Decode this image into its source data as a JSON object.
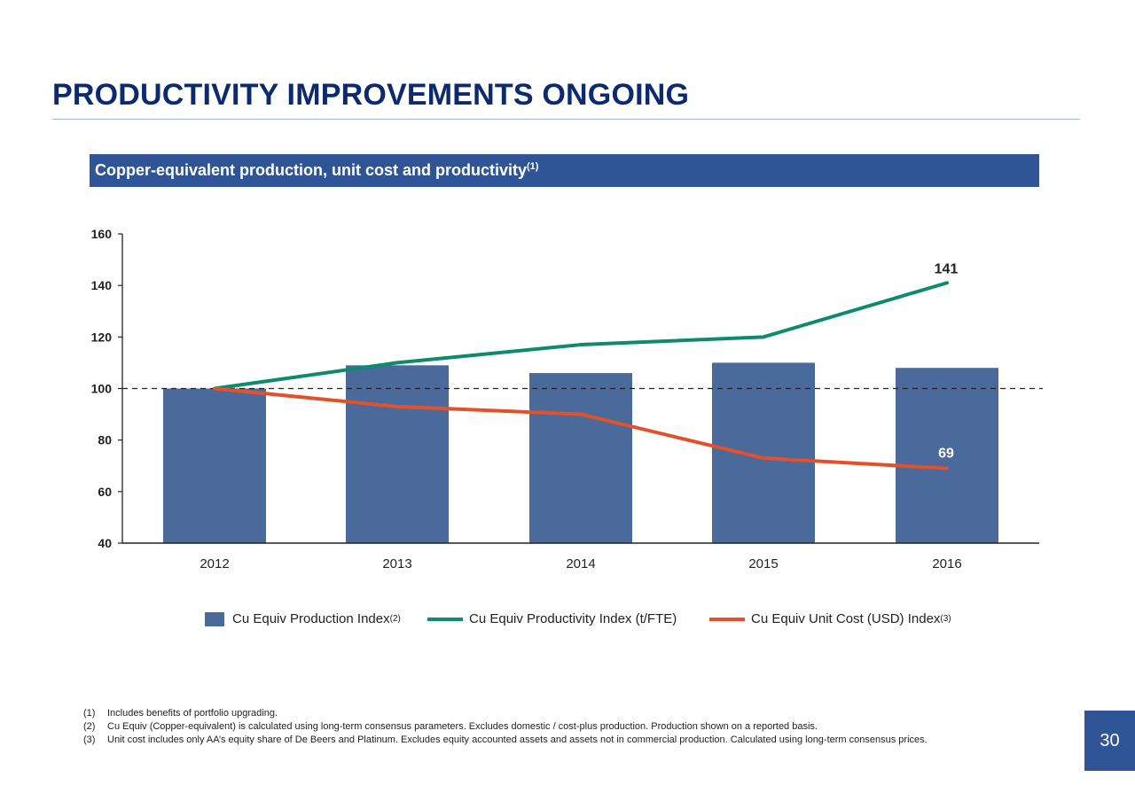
{
  "page": {
    "title": "PRODUCTIVITY IMPROVEMENTS ONGOING",
    "banner_text": "Copper-equivalent production, unit cost and productivity",
    "banner_sup": "(1)",
    "page_number": "30"
  },
  "legend": {
    "production_label": "Cu Equiv Production Index",
    "production_sup": "(2)",
    "productivity_label": "Cu Equiv Productivity Index (t/FTE)",
    "cost_label": "Cu Equiv Unit Cost (USD) Index",
    "cost_sup": "(3)"
  },
  "footnotes": [
    {
      "num": "(1)",
      "text": "Includes benefits of portfolio upgrading."
    },
    {
      "num": "(2)",
      "text": "Cu Equiv (Copper-equivalent) is calculated using long-term consensus parameters. Excludes domestic / cost-plus production. Production shown on a reported basis."
    },
    {
      "num": "(3)",
      "text": "Unit cost includes only AA’s equity share of De Beers and Platinum. Excludes equity accounted assets and assets not in commercial production. Calculated using long-term consensus prices."
    }
  ],
  "colors": {
    "title": "#0b2a6f",
    "banner": "#2f5597",
    "bars": "#4a6a9c",
    "productivity_line": "#0e8a6e",
    "cost_line": "#e2502c"
  },
  "chart_data": {
    "type": "bar",
    "title": "Copper-equivalent production, unit cost and productivity",
    "categories": [
      "2012",
      "2013",
      "2014",
      "2015",
      "2016"
    ],
    "ylim": [
      40,
      160
    ],
    "yticks": [
      40,
      60,
      80,
      100,
      120,
      140,
      160
    ],
    "reference_line": 100,
    "series": [
      {
        "name": "Cu Equiv Production Index",
        "kind": "bar",
        "values": [
          100,
          109,
          106,
          110,
          108
        ]
      },
      {
        "name": "Cu Equiv Productivity Index (t/FTE)",
        "kind": "line",
        "values": [
          100,
          110,
          117,
          120,
          141
        ]
      },
      {
        "name": "Cu Equiv Unit Cost (USD) Index",
        "kind": "line",
        "values": [
          100,
          93,
          90,
          73,
          69
        ]
      }
    ],
    "data_labels": [
      {
        "series": "Cu Equiv Productivity Index (t/FTE)",
        "category": "2016",
        "text": "141"
      },
      {
        "series": "Cu Equiv Unit Cost (USD) Index",
        "category": "2016",
        "text": "69"
      }
    ],
    "legend_position": "bottom"
  }
}
